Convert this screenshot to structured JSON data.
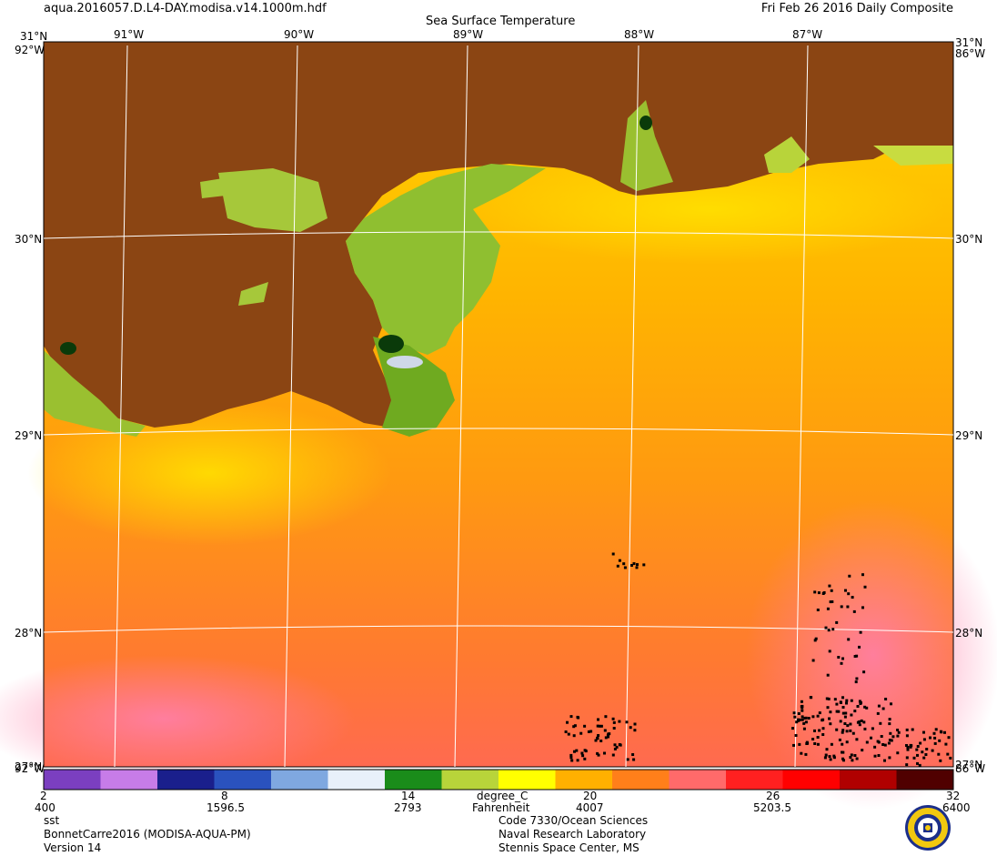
{
  "header": {
    "filename": "aqua.2016057.D.L4-DAY.modisa.v14.1000m.hdf",
    "title": "Sea Surface Temperature",
    "date": "Fri Feb 26 2016 Daily Composite"
  },
  "map": {
    "region": "Northern Gulf of Mexico / Mississippi River Delta",
    "longitudes": [
      {
        "value": -91,
        "label": "91°W"
      },
      {
        "value": -90,
        "label": "90°W"
      },
      {
        "value": -89,
        "label": "89°W"
      },
      {
        "value": -88,
        "label": "88°W"
      },
      {
        "value": -87,
        "label": "87°W"
      }
    ],
    "latitudes": [
      {
        "value": 30,
        "label": "30°N"
      },
      {
        "value": 29,
        "label": "29°N"
      },
      {
        "value": 28,
        "label": "28°N"
      }
    ],
    "corner_labels": {
      "top_left": "31°N",
      "top_right": "31°N",
      "left_top_lon": "92°W",
      "right_top_lon": "86°W",
      "left_bottom_lon": "92°W",
      "right_bottom_lon": "86°W",
      "left_bottom_lat": "27°N",
      "right_bottom_lat": "27°N"
    },
    "land_color": "#8b4513",
    "grid_color": "#ffffff"
  },
  "colorbar": {
    "celsius_ticks": [
      "2",
      "8",
      "14",
      "20",
      "26",
      "32"
    ],
    "fahrenheit_ticks": [
      "400",
      "1596.5",
      "2793",
      "4007",
      "5203.5",
      "6400"
    ],
    "unit_label": "degree_C",
    "alt_unit_label": "Fahrenheit",
    "colors": [
      "#7b3fc0",
      "#c77ce8",
      "#1a1f8c",
      "#2a52be",
      "#7fa8e0",
      "#e8f0fa",
      "#1a8c1a",
      "#b8d43a",
      "#ffff00",
      "#ffb000",
      "#ff7f1a",
      "#ff6a6a",
      "#ff2020",
      "#ff0000",
      "#b00000",
      "#500000"
    ]
  },
  "footer": {
    "product": "sst",
    "region_name": "BonnetCarre2016 (MODISA-AQUA-PM)",
    "version": "Version 14",
    "org1": "Code 7330/Ocean Sciences",
    "org2": "Naval Research Laboratory",
    "org3": "Stennis Space Center, MS"
  }
}
